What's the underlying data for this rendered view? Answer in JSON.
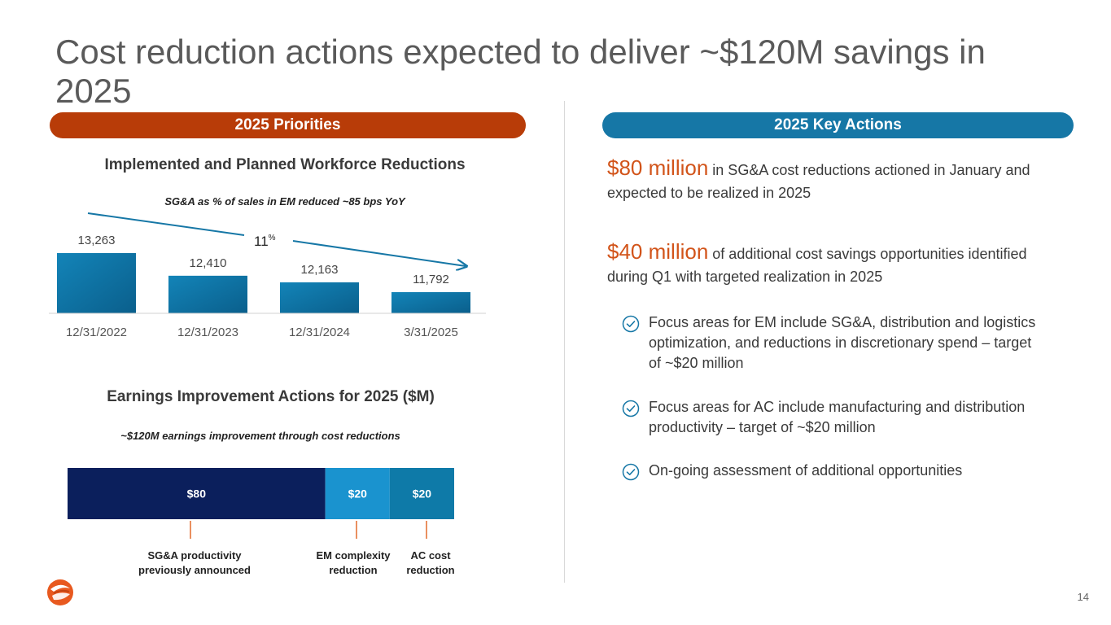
{
  "title": "Cost reduction actions expected to deliver ~$120M savings in 2025",
  "left_pill": "2025 Priorities",
  "right_pill": "2025 Key Actions",
  "workforce": {
    "heading": "Implemented and Planned Workforce Reductions",
    "subtitle": "SG&A as % of sales in EM reduced ~85 bps YoY",
    "trend_label": "11",
    "trend_unit": "%"
  },
  "earnings": {
    "heading": "Earnings Improvement Actions for 2025 ($M)",
    "subtitle": "~$120M earnings improvement through cost reductions"
  },
  "chart_data": [
    {
      "type": "bar",
      "title": "Implemented and Planned Workforce Reductions",
      "categories": [
        "12/31/2022",
        "12/31/2023",
        "12/31/2024",
        "3/31/2025"
      ],
      "values": [
        13263,
        12410,
        12163,
        11792
      ],
      "value_labels": [
        "13,263",
        "12,410",
        "12,163",
        "11,792"
      ],
      "ylim": [
        11000,
        13500
      ],
      "annotation": "11%",
      "color": "#0e74a3"
    },
    {
      "type": "bar",
      "orientation": "horizontal-stacked",
      "title": "Earnings Improvement Actions for 2025 ($M)",
      "series": [
        {
          "name": "SG&A productivity previously announced",
          "value": 80,
          "label": "$80",
          "color": "#0b1f5c"
        },
        {
          "name": "EM complexity reduction",
          "value": 20,
          "label": "$20",
          "color": "#1a93cf"
        },
        {
          "name": "AC cost reduction",
          "value": 20,
          "label": "$20",
          "color": "#0e7aa8"
        }
      ],
      "callouts": [
        {
          "line1": "SG&A productivity",
          "line2": "previously announced"
        },
        {
          "line1": "EM complexity",
          "line2": "reduction"
        },
        {
          "line1": "AC cost",
          "line2": "reduction"
        }
      ],
      "leader_color": "#e36a2a"
    }
  ],
  "actions": {
    "p1_big": "$80 million",
    "p1_text": " in SG&A cost reductions actioned in January and expected to be realized in 2025",
    "p2_big": "$40 million",
    "p2_text": " of additional cost savings opportunities identified during Q1 with targeted realization in 2025",
    "bullets": [
      "Focus areas for EM include SG&A, distribution and logistics optimization, and reductions in discretionary spend – target of ~$20 million",
      "Focus areas for AC include manufacturing and distribution productivity – target of ~$20 million",
      "On-going assessment of additional opportunities"
    ],
    "check_color": "#1677a6"
  },
  "page_number": "14",
  "colors": {
    "accent_orange": "#b83c08",
    "accent_blue": "#1677a6"
  }
}
